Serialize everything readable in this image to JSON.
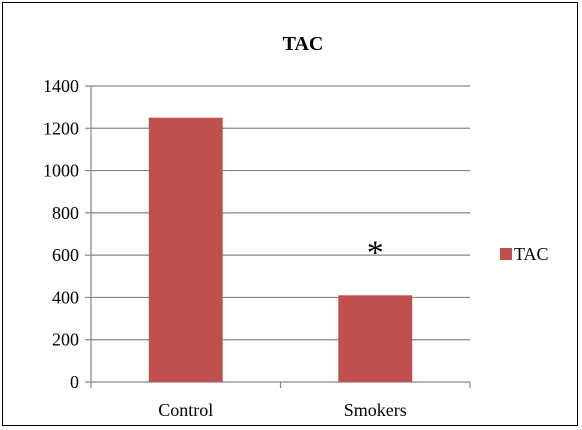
{
  "chart_data": {
    "type": "bar",
    "title": "TAC",
    "categories": [
      "Control",
      "Smokers"
    ],
    "series": [
      {
        "name": "TAC",
        "values": [
          1250,
          410
        ],
        "color": "#C0504D"
      }
    ],
    "ylim": [
      0,
      1400
    ],
    "yticks": [
      0,
      200,
      400,
      600,
      800,
      1000,
      1200,
      1400
    ],
    "grid": true,
    "legend": "right",
    "annotations": [
      {
        "category": "Smokers",
        "text": "*"
      }
    ]
  }
}
